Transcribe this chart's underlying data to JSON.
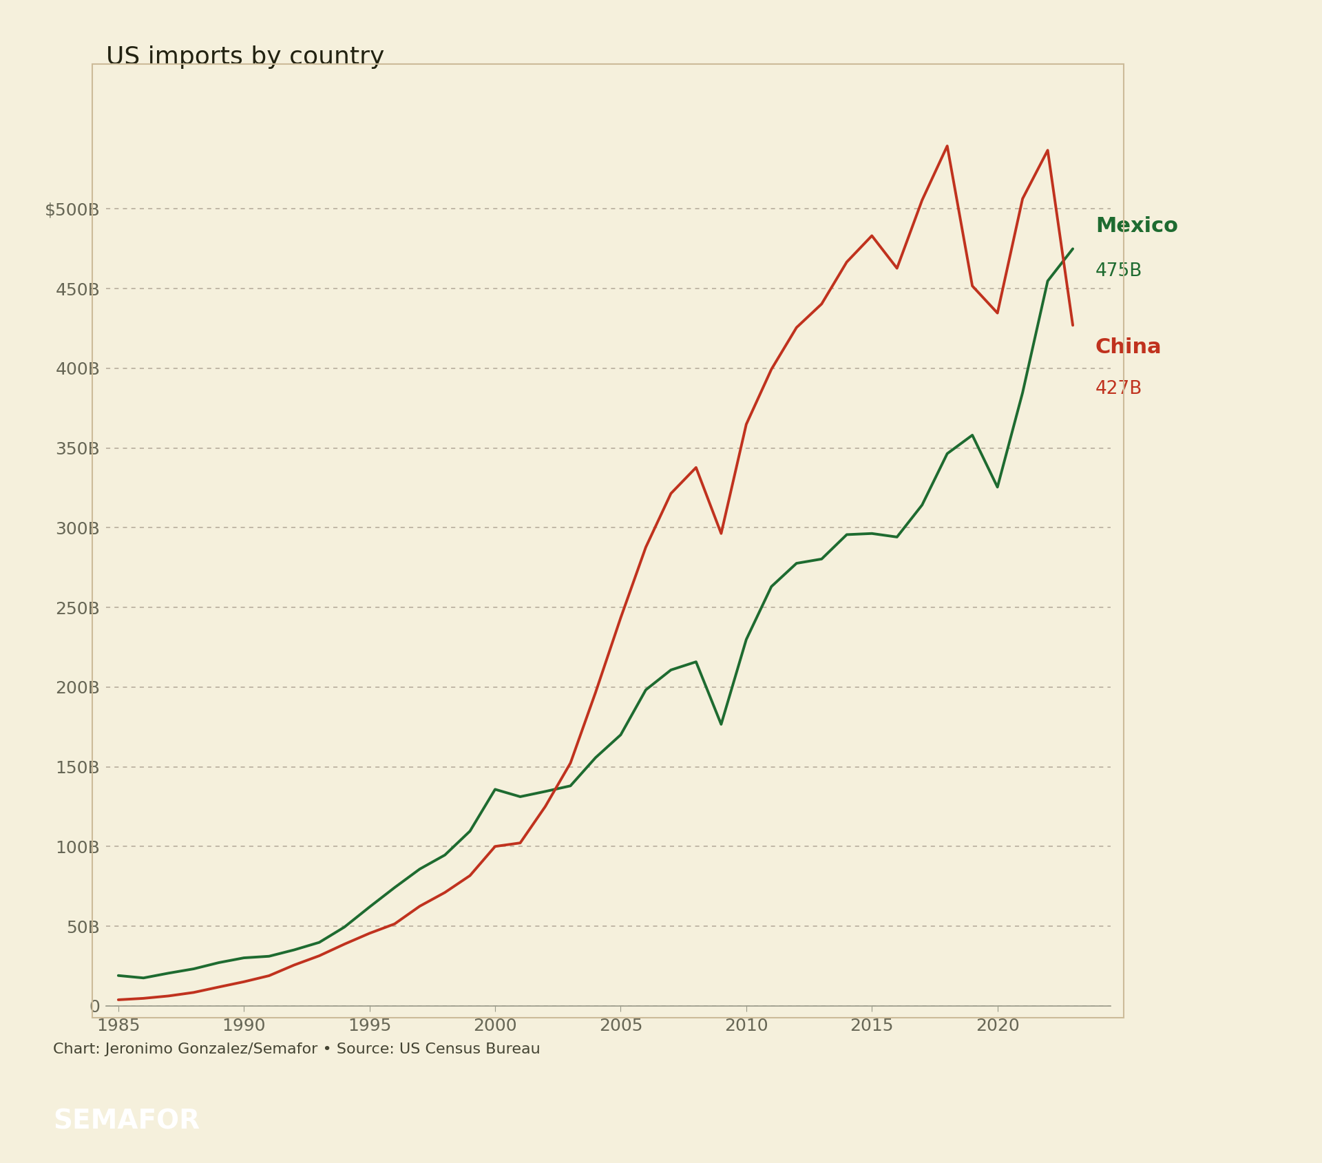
{
  "title": "US imports by country",
  "background_color": "#f5f0dc",
  "footer_color": "#111111",
  "grid_color": "#aaa090",
  "mexico_color": "#1e6b30",
  "china_color": "#c0321e",
  "mexico_label": "Mexico",
  "china_label": "China",
  "mexico_value_label": "475B",
  "china_value_label": "427B",
  "caption": "Chart: Jeronimo Gonzalez/Semafor • Source: US Census Bureau",
  "branding": "SEMAFOR",
  "years_mexico": [
    1985,
    1986,
    1987,
    1988,
    1989,
    1990,
    1991,
    1992,
    1993,
    1994,
    1995,
    1996,
    1997,
    1998,
    1999,
    2000,
    2001,
    2002,
    2003,
    2004,
    2005,
    2006,
    2007,
    2008,
    2009,
    2010,
    2011,
    2012,
    2013,
    2014,
    2015,
    2016,
    2017,
    2018,
    2019,
    2020,
    2021,
    2022,
    2023
  ],
  "values_mexico": [
    19.1,
    17.6,
    20.6,
    23.3,
    27.2,
    30.2,
    31.2,
    35.2,
    39.9,
    49.5,
    62.1,
    74.3,
    85.9,
    94.7,
    109.7,
    135.9,
    131.3,
    134.6,
    138.1,
    155.8,
    170.1,
    198.3,
    210.8,
    215.9,
    176.7,
    229.9,
    263.1,
    277.7,
    280.4,
    295.7,
    296.4,
    294.2,
    314.3,
    346.5,
    358.1,
    325.5,
    384.7,
    454.8,
    475.0
  ],
  "years_china": [
    1985,
    1986,
    1987,
    1988,
    1989,
    1990,
    1991,
    1992,
    1993,
    1994,
    1995,
    1996,
    1997,
    1998,
    1999,
    2000,
    2001,
    2002,
    2003,
    2004,
    2005,
    2006,
    2007,
    2008,
    2009,
    2010,
    2011,
    2012,
    2013,
    2014,
    2015,
    2016,
    2017,
    2018,
    2019,
    2020,
    2021,
    2022,
    2023
  ],
  "values_china": [
    3.9,
    4.8,
    6.3,
    8.5,
    11.9,
    15.2,
    19.0,
    25.7,
    31.5,
    38.8,
    45.6,
    51.5,
    62.6,
    71.2,
    81.8,
    100.1,
    102.3,
    125.2,
    152.4,
    196.7,
    243.5,
    287.8,
    321.5,
    337.8,
    296.4,
    364.9,
    399.4,
    425.6,
    440.4,
    466.7,
    483.2,
    462.8,
    505.5,
    539.5,
    451.7,
    434.7,
    506.4,
    536.8,
    427.0
  ],
  "ylim": [
    0,
    580
  ],
  "yticks": [
    0,
    50,
    100,
    150,
    200,
    250,
    300,
    350,
    400,
    450,
    500
  ],
  "ytick_labels": [
    "0",
    "50B",
    "100B",
    "150B",
    "200B",
    "250B",
    "300B",
    "350B",
    "400B",
    "450B",
    "$500B"
  ],
  "xlim": [
    1984.5,
    2024.5
  ],
  "xticks": [
    1985,
    1990,
    1995,
    2000,
    2005,
    2010,
    2015,
    2020
  ],
  "line_width": 2.8,
  "title_fontsize": 26,
  "tick_fontsize": 18,
  "label_fontsize": 22,
  "value_fontsize": 19,
  "caption_fontsize": 16,
  "branding_fontsize": 28
}
